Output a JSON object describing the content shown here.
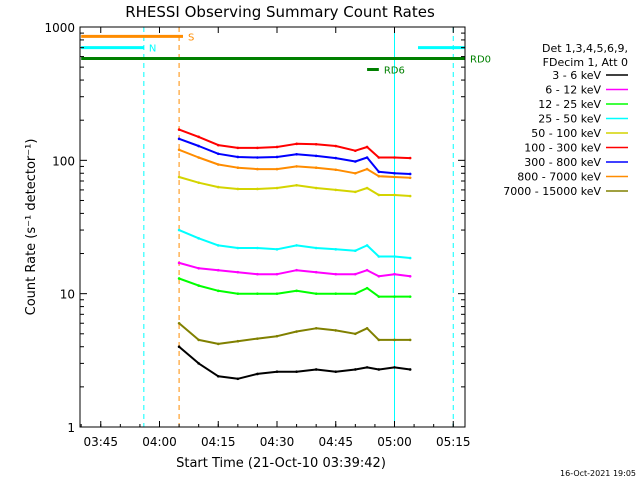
{
  "chart_data": {
    "type": "line",
    "title": "RHESSI Observing Summary Count Rates",
    "xlabel": "Start Time (21-Oct-10 03:39:42)",
    "ylabel": "Count Rate (s⁻¹ detector⁻¹)",
    "y_scale": "log",
    "ylim": [
      1,
      1000
    ],
    "xlim": [
      "03:39:42",
      "05:18:00"
    ],
    "grid": false,
    "legend_placement": "right",
    "x_ticks": [
      "03:45",
      "04:00",
      "04:15",
      "04:30",
      "04:45",
      "05:00",
      "05:15"
    ],
    "y_ticks": [
      "1",
      "10",
      "100",
      "1000"
    ],
    "legend_header": [
      "Det 1,3,4,5,6,9,",
      "FDecim 1, Att 0"
    ],
    "footer_date": "16-Oct-2021 19:05",
    "x": [
      "04:05",
      "04:10",
      "04:15",
      "04:20",
      "04:25",
      "04:30",
      "04:35",
      "04:40",
      "04:45",
      "04:50",
      "04:53",
      "04:56",
      "05:00",
      "05:04"
    ],
    "series": [
      {
        "name": "3 - 6 keV",
        "color": "#000000",
        "values": [
          4,
          3,
          2.4,
          2.3,
          2.5,
          2.6,
          2.6,
          2.7,
          2.6,
          2.7,
          2.8,
          2.7,
          2.8,
          2.7
        ]
      },
      {
        "name": "6 - 12 keV",
        "color": "#ff00ff",
        "values": [
          17,
          15.5,
          15,
          14.5,
          14,
          14,
          15,
          14.5,
          14,
          14,
          15,
          13.5,
          14,
          13.5
        ]
      },
      {
        "name": "12 - 25 keV",
        "color": "#00ff00",
        "values": [
          13,
          11.5,
          10.5,
          10,
          10,
          10,
          10.5,
          10,
          10,
          10,
          11,
          9.5,
          9.5,
          9.5
        ]
      },
      {
        "name": "25 - 50 keV",
        "color": "#00ffff",
        "values": [
          30,
          26,
          23,
          22,
          22,
          21.5,
          23,
          22,
          21.5,
          21,
          23,
          19,
          19,
          18.5
        ]
      },
      {
        "name": "50 - 100 keV",
        "color": "#d4d400",
        "values": [
          75,
          68,
          63,
          61,
          61,
          62,
          65,
          62,
          60,
          58,
          62,
          55,
          55,
          54
        ]
      },
      {
        "name": "100 - 300 keV",
        "color": "#ff0000",
        "values": [
          170,
          150,
          130,
          124,
          124,
          126,
          133,
          132,
          128,
          118,
          126,
          105,
          105,
          104
        ]
      },
      {
        "name": "300 - 800 keV",
        "color": "#0000ff",
        "values": [
          145,
          128,
          112,
          106,
          105,
          106,
          111,
          108,
          104,
          98,
          105,
          82,
          80,
          79
        ]
      },
      {
        "name": "800 - 7000 keV",
        "color": "#ff8c00",
        "values": [
          120,
          105,
          93,
          88,
          86,
          86,
          90,
          88,
          85,
          80,
          86,
          76,
          75,
          74
        ]
      },
      {
        "name": "7000 - 15000 keV",
        "color": "#808000",
        "values": [
          6,
          4.5,
          4.2,
          4.4,
          4.6,
          4.8,
          5.2,
          5.5,
          5.3,
          5,
          5.5,
          4.5,
          4.5,
          4.5
        ]
      }
    ],
    "annotations": [
      {
        "label": "S",
        "color": "#ff8c00",
        "x_start": "03:40",
        "x_end": "04:06",
        "level": 850
      },
      {
        "label": "N",
        "color": "#00ffff",
        "x_start": "03:40",
        "x_end": "03:56",
        "level": 700
      },
      {
        "label": "",
        "color": "#00ffff",
        "x_start": "05:06",
        "x_end": "05:18",
        "level": 700
      },
      {
        "label": "RD0",
        "color": "#008000",
        "x_start": "03:40",
        "x_end": "05:18",
        "level": 580
      },
      {
        "label": "RD6",
        "color": "#008000",
        "x_start": "04:53",
        "x_end": "04:56",
        "level": 480
      }
    ],
    "vertical_markers": [
      {
        "time": "03:56",
        "color": "#00ffff"
      },
      {
        "time": "04:05",
        "color": "#ff8c00"
      },
      {
        "time": "05:15",
        "color": "#00ffff"
      }
    ],
    "vertical_solid_markers": [
      {
        "time": "05:00",
        "color": "#00ffff"
      }
    ]
  }
}
